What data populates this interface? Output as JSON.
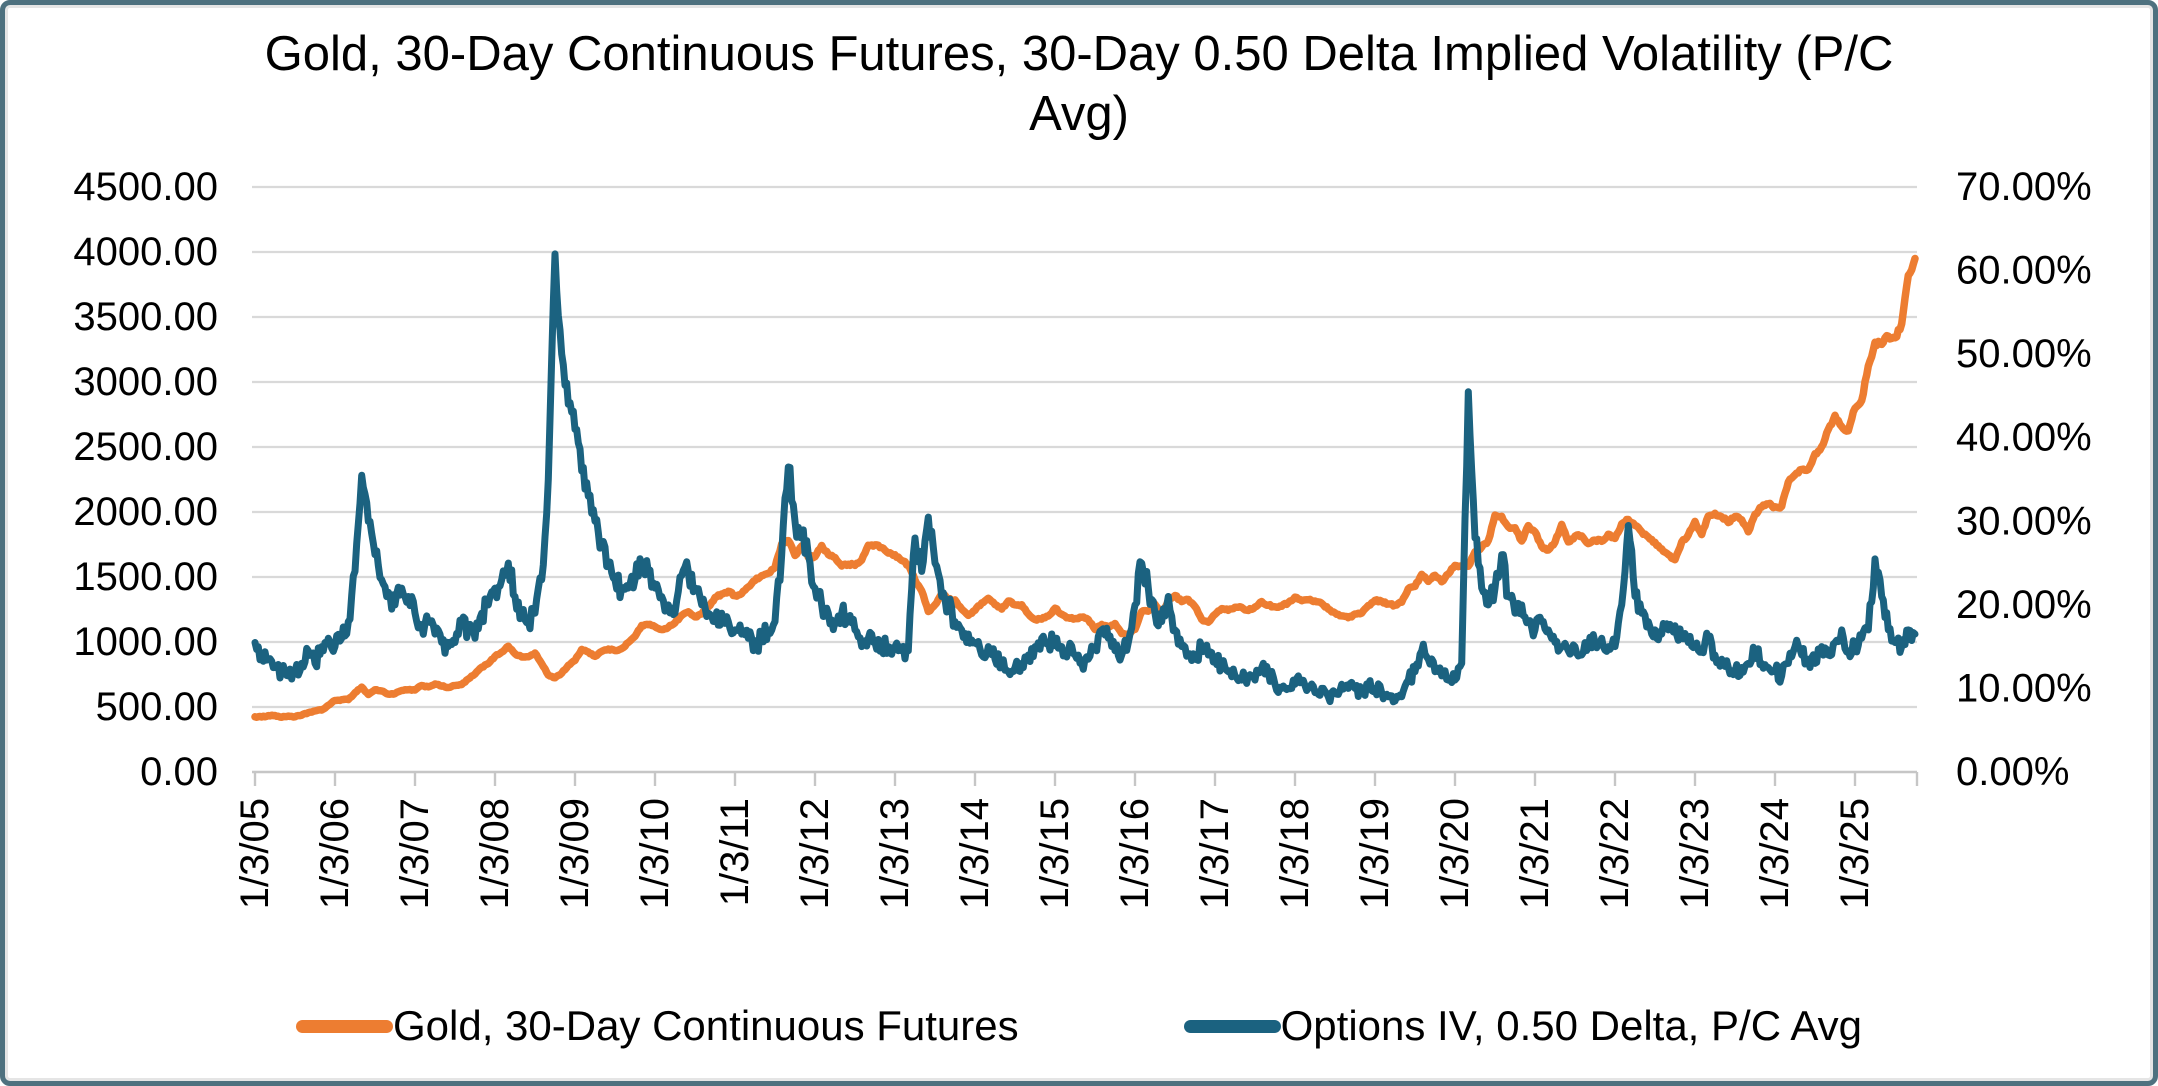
{
  "frame": {
    "outer_border_color": "#4E717F",
    "inner_border_color": "#E5E5E5",
    "background": "#FFFFFF"
  },
  "title_line1": "Gold, 30-Day Continuous Futures, 30-Day 0.50 Delta Implied Volatility (P/C",
  "title_line2": "Avg)",
  "legend": [
    {
      "label": "Gold, 30-Day Continuous Futures",
      "color": "#ED7D31"
    },
    {
      "label": "Options IV, 0.50 Delta, P/C Avg",
      "color": "#1B6280"
    }
  ],
  "colors": {
    "gold_series": "#ED7D31",
    "iv_series": "#1B6280",
    "gridline": "#D9D9D9",
    "axis_line": "#C6C6C6",
    "label_text": "#000000"
  },
  "chart_data": {
    "type": "line",
    "title": "Gold, 30-Day Continuous Futures, 30-Day 0.50 Delta Implied Volatility (P/C Avg)",
    "grid": "horizontal",
    "legend_position": "bottom",
    "x_interval": "monthly",
    "x_start": "2005-01",
    "x_end": "2025-10",
    "x_tick_labels": [
      "1/3/05",
      "1/3/06",
      "1/3/07",
      "1/3/08",
      "1/3/09",
      "1/3/10",
      "1/3/11",
      "1/3/12",
      "1/3/13",
      "1/3/14",
      "1/3/15",
      "1/3/16",
      "1/3/17",
      "1/3/18",
      "1/3/19",
      "1/3/20",
      "1/3/21",
      "1/3/22",
      "1/3/23",
      "1/3/24",
      "1/3/25"
    ],
    "y_left": {
      "min": 0,
      "max": 4500,
      "step": 500,
      "tick_labels": [
        "4500.00",
        "4000.00",
        "3500.00",
        "3000.00",
        "2500.00",
        "2000.00",
        "1500.00",
        "1000.00",
        "500.00",
        "0.00"
      ]
    },
    "y_right": {
      "min": 0,
      "max": 70,
      "step": 10,
      "tick_labels": [
        "70.00%",
        "60.00%",
        "50.00%",
        "40.00%",
        "30.00%",
        "20.00%",
        "10.00%",
        "0.00%"
      ]
    },
    "series": [
      {
        "name": "Gold, 30-Day Continuous Futures",
        "axis": "left",
        "color": "#ED7D31",
        "values": [
          425,
          423,
          434,
          435,
          421,
          430,
          425,
          437,
          456,
          470,
          476,
          513,
          550,
          556,
          557,
          610,
          653,
          596,
          633,
          623,
          599,
          603,
          627,
          632,
          631,
          665,
          655,
          677,
          661,
          650,
          665,
          672,
          715,
          754,
          806,
          834,
          890,
          922,
          968,
          910,
          885,
          886,
          915,
          833,
          745,
          725,
          760,
          820,
          858,
          943,
          924,
          890,
          928,
          945,
          934,
          949,
          996,
          1043,
          1127,
          1134,
          1118,
          1095,
          1113,
          1148,
          1205,
          1232,
          1193,
          1215,
          1271,
          1342,
          1369,
          1390,
          1356,
          1372,
          1424,
          1473,
          1510,
          1529,
          1572,
          1755,
          1780,
          1665,
          1739,
          1652,
          1656,
          1742,
          1673,
          1650,
          1585,
          1598,
          1590,
          1630,
          1744,
          1747,
          1726,
          1684,
          1671,
          1627,
          1593,
          1476,
          1393,
          1235,
          1286,
          1372,
          1330,
          1324,
          1253,
          1205,
          1244,
          1300,
          1336,
          1288,
          1253,
          1315,
          1286,
          1287,
          1216,
          1173,
          1176,
          1199,
          1260,
          1213,
          1187,
          1180,
          1191,
          1172,
          1096,
          1135,
          1114,
          1142,
          1065,
          1062,
          1097,
          1234,
          1237,
          1290,
          1215,
          1321,
          1358,
          1311,
          1327,
          1272,
          1174,
          1152,
          1212,
          1257,
          1244,
          1268,
          1266,
          1242,
          1269,
          1311,
          1283,
          1271,
          1275,
          1303,
          1345,
          1318,
          1325,
          1315,
          1298,
          1253,
          1224,
          1201,
          1187,
          1215,
          1222,
          1281,
          1321,
          1313,
          1292,
          1283,
          1306,
          1410,
          1428,
          1520,
          1466,
          1513,
          1464,
          1523,
          1589,
          1586,
          1583,
          1694,
          1730,
          1781,
          1976,
          1967,
          1886,
          1879,
          1777,
          1895,
          1848,
          1734,
          1708,
          1768,
          1905,
          1770,
          1814,
          1816,
          1757,
          1784,
          1775,
          1829,
          1797,
          1909,
          1942,
          1897,
          1848,
          1807,
          1766,
          1716,
          1672,
          1633,
          1769,
          1824,
          1928,
          1826,
          1969,
          1990,
          1963,
          1919,
          1965,
          1940,
          1848,
          1983,
          2038,
          2062,
          2040,
          2044,
          2230,
          2286,
          2327,
          2327,
          2448,
          2503,
          2635,
          2744,
          2657,
          2625,
          2798,
          2858,
          3123,
          3305,
          3289,
          3353,
          3340,
          3448,
          3820,
          3950
        ]
      },
      {
        "name": "Options IV, 0.50 Delta, P/C Avg",
        "axis": "right",
        "color": "#1B6280",
        "values": [
          15.5,
          14,
          13.5,
          12.5,
          12,
          11.5,
          12,
          13,
          14.5,
          13,
          15,
          16,
          15,
          16,
          18,
          24,
          35.5,
          30,
          26,
          23,
          21.5,
          20,
          22,
          21,
          19,
          17.5,
          18,
          16.5,
          15.5,
          15,
          15.5,
          18,
          17,
          16,
          19,
          20,
          22,
          23,
          25,
          21,
          19,
          18,
          19,
          23,
          35,
          62,
          50,
          44,
          41,
          36,
          33,
          30,
          27,
          25,
          23,
          22,
          22,
          23,
          25,
          24,
          22,
          21,
          20,
          19,
          23.5,
          24,
          22,
          20,
          19,
          18,
          19,
          18,
          17,
          16.5,
          16,
          15,
          16,
          17,
          18,
          26,
          36.5,
          30,
          28,
          26,
          22,
          20,
          19,
          18,
          19,
          18,
          17,
          15,
          16,
          15.5,
          15,
          15,
          15,
          14.5,
          14.5,
          28,
          24,
          30.5,
          25,
          21,
          20,
          18,
          17,
          16.5,
          15.5,
          14,
          15,
          13.5,
          13,
          12,
          12.5,
          13,
          14,
          15,
          16,
          15.5,
          16,
          15,
          14.5,
          14,
          13,
          13.5,
          15,
          17,
          16,
          14.5,
          14,
          15.5,
          20,
          25,
          22,
          19,
          18,
          21,
          17,
          15,
          14,
          13.5,
          15,
          14,
          13.5,
          12.5,
          12,
          11.5,
          11,
          11.5,
          11,
          12.5,
          12,
          10.5,
          10,
          10,
          10.5,
          11,
          10,
          9.5,
          10,
          9,
          9.5,
          10.5,
          10,
          10,
          9.5,
          10.5,
          10,
          9.5,
          9,
          8.5,
          9,
          11,
          12,
          14.5,
          13.5,
          12,
          11.5,
          11,
          11,
          13,
          45.5,
          28,
          22,
          20,
          22,
          26,
          21,
          19,
          20,
          18,
          17,
          18,
          17,
          15.5,
          15,
          14.5,
          15,
          14,
          15,
          15.5,
          16,
          15,
          15,
          20,
          29.5,
          21,
          19,
          18,
          17,
          16.5,
          17,
          17.5,
          16,
          15.5,
          15,
          14.5,
          16,
          14,
          13.5,
          12.5,
          12,
          12.5,
          13,
          14.5,
          13,
          12.5,
          12,
          11.5,
          13,
          15,
          14,
          13.5,
          13,
          15,
          14,
          15.5,
          17,
          14.5,
          15,
          16,
          17,
          25.5,
          21,
          17,
          15.5,
          15,
          17,
          16.5
        ]
      }
    ]
  }
}
